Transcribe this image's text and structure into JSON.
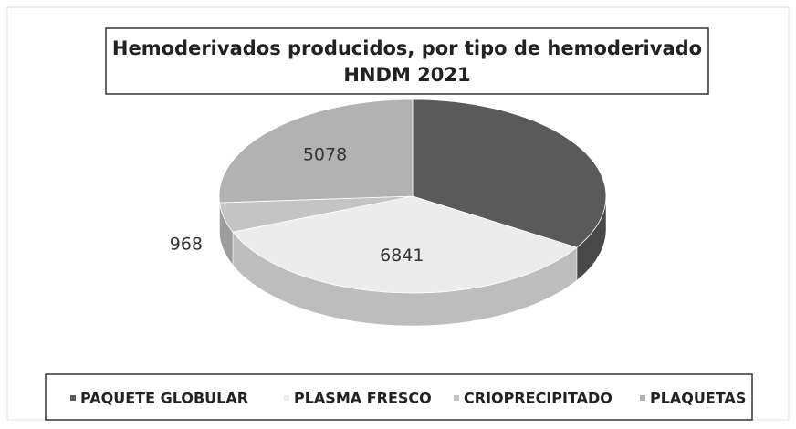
{
  "chart_data": {
    "type": "pie",
    "title": [
      "Hemoderivados producidos, por tipo de hemoderivado",
      "HNDM 2021"
    ],
    "categories": [
      "PAQUETE GLOBULAR",
      "PLASMA FRESCO",
      "CRIOPRECIPITADO",
      "PLAQUETAS"
    ],
    "values": [
      6600,
      6841,
      968,
      5078
    ],
    "value_labels": [
      null,
      "6841",
      "968",
      "5078"
    ],
    "colors": [
      "#5a5a5a",
      "#ececec",
      "#c4c4c4",
      "#b2b2b2"
    ],
    "legend": "bottom"
  }
}
